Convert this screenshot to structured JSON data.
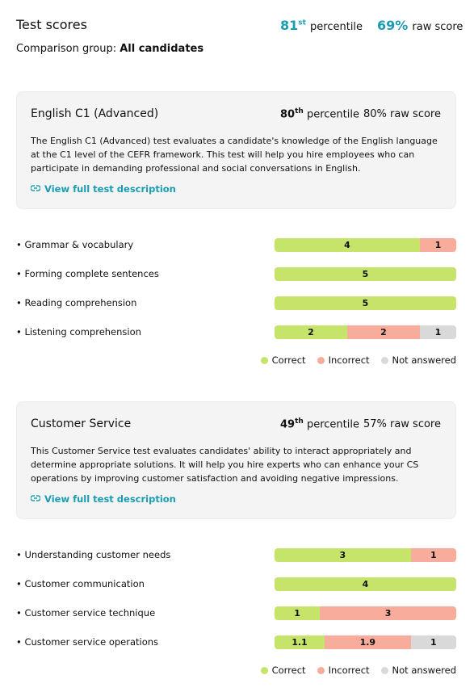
{
  "header": {
    "title": "Test scores",
    "percentile": "81",
    "percentile_suffix": "st",
    "percentile_label": "percentile",
    "raw_score": "69%",
    "raw_score_label": "raw score",
    "comparison_label": "Comparison group:",
    "comparison_value": "All candidates"
  },
  "legend": [
    {
      "label": "Correct",
      "color": "#c6e36a"
    },
    {
      "label": "Incorrect",
      "color": "#f8ac9c"
    },
    {
      "label": "Not answered",
      "color": "#d9d9d9"
    }
  ],
  "tests": [
    {
      "name": "English C1 (Advanced)",
      "percentile": "80",
      "percentile_suffix": "th",
      "percentile_label": "percentile",
      "raw_score": "80% raw score",
      "description": "The English C1 (Advanced) test evaluates a candidate's knowledge of the English language at the C1 level of the CEFR framework. This test will help you hire employees who can participate in demanding professional and social conversations in English.",
      "link": "View full test description",
      "skills": [
        {
          "name": "Grammar & vocabulary",
          "segments": [
            4,
            1,
            null
          ]
        },
        {
          "name": "Forming complete sentences",
          "segments": [
            5,
            null,
            null
          ]
        },
        {
          "name": "Reading comprehension",
          "segments": [
            5,
            null,
            null
          ]
        },
        {
          "name": "Listening comprehension",
          "segments": [
            2,
            2,
            1
          ]
        }
      ]
    },
    {
      "name": "Customer Service",
      "percentile": "49",
      "percentile_suffix": "th",
      "percentile_label": "percentile",
      "raw_score": "57% raw score",
      "description": "This Customer Service test evaluates candidates' ability to interact appropriately and determine appropriate solutions. It will help you hire experts who can enhance your CS operations by improving customer satisfaction and avoiding negative impressions.",
      "link": "View full test description",
      "skills": [
        {
          "name": "Understanding customer needs",
          "segments": [
            3,
            1,
            null
          ]
        },
        {
          "name": "Customer communication",
          "segments": [
            4,
            null,
            null
          ]
        },
        {
          "name": "Customer service technique",
          "segments": [
            1,
            3,
            null
          ]
        },
        {
          "name": "Customer service operations",
          "segments": [
            1.1,
            1.9,
            1
          ]
        }
      ]
    }
  ]
}
